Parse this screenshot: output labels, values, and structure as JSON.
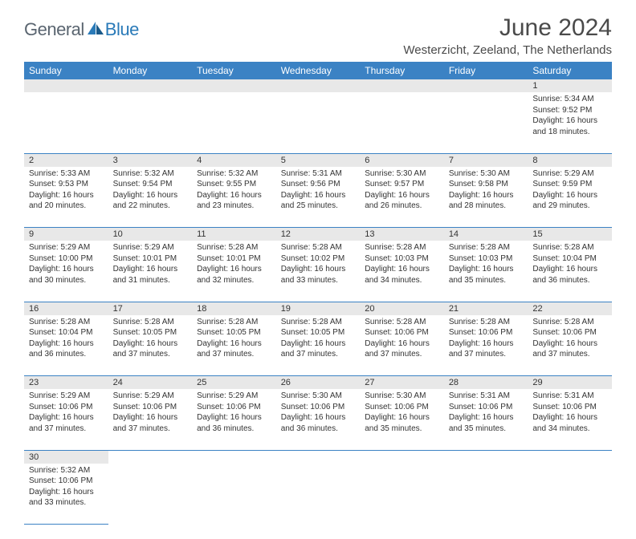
{
  "logo": {
    "text1": "General",
    "text2": "Blue"
  },
  "title": "June 2024",
  "location": "Westerzicht, Zeeland, The Netherlands",
  "colors": {
    "header_bg": "#3b82c4",
    "header_text": "#ffffff",
    "daynum_bg": "#e8e8e8",
    "border": "#3b82c4",
    "logo_gray": "#5a6570",
    "logo_blue": "#2a7ab8"
  },
  "weekdays": [
    "Sunday",
    "Monday",
    "Tuesday",
    "Wednesday",
    "Thursday",
    "Friday",
    "Saturday"
  ],
  "weeks": [
    [
      null,
      null,
      null,
      null,
      null,
      null,
      {
        "n": "1",
        "sr": "Sunrise: 5:34 AM",
        "ss": "Sunset: 9:52 PM",
        "dl": "Daylight: 16 hours and 18 minutes."
      }
    ],
    [
      {
        "n": "2",
        "sr": "Sunrise: 5:33 AM",
        "ss": "Sunset: 9:53 PM",
        "dl": "Daylight: 16 hours and 20 minutes."
      },
      {
        "n": "3",
        "sr": "Sunrise: 5:32 AM",
        "ss": "Sunset: 9:54 PM",
        "dl": "Daylight: 16 hours and 22 minutes."
      },
      {
        "n": "4",
        "sr": "Sunrise: 5:32 AM",
        "ss": "Sunset: 9:55 PM",
        "dl": "Daylight: 16 hours and 23 minutes."
      },
      {
        "n": "5",
        "sr": "Sunrise: 5:31 AM",
        "ss": "Sunset: 9:56 PM",
        "dl": "Daylight: 16 hours and 25 minutes."
      },
      {
        "n": "6",
        "sr": "Sunrise: 5:30 AM",
        "ss": "Sunset: 9:57 PM",
        "dl": "Daylight: 16 hours and 26 minutes."
      },
      {
        "n": "7",
        "sr": "Sunrise: 5:30 AM",
        "ss": "Sunset: 9:58 PM",
        "dl": "Daylight: 16 hours and 28 minutes."
      },
      {
        "n": "8",
        "sr": "Sunrise: 5:29 AM",
        "ss": "Sunset: 9:59 PM",
        "dl": "Daylight: 16 hours and 29 minutes."
      }
    ],
    [
      {
        "n": "9",
        "sr": "Sunrise: 5:29 AM",
        "ss": "Sunset: 10:00 PM",
        "dl": "Daylight: 16 hours and 30 minutes."
      },
      {
        "n": "10",
        "sr": "Sunrise: 5:29 AM",
        "ss": "Sunset: 10:01 PM",
        "dl": "Daylight: 16 hours and 31 minutes."
      },
      {
        "n": "11",
        "sr": "Sunrise: 5:28 AM",
        "ss": "Sunset: 10:01 PM",
        "dl": "Daylight: 16 hours and 32 minutes."
      },
      {
        "n": "12",
        "sr": "Sunrise: 5:28 AM",
        "ss": "Sunset: 10:02 PM",
        "dl": "Daylight: 16 hours and 33 minutes."
      },
      {
        "n": "13",
        "sr": "Sunrise: 5:28 AM",
        "ss": "Sunset: 10:03 PM",
        "dl": "Daylight: 16 hours and 34 minutes."
      },
      {
        "n": "14",
        "sr": "Sunrise: 5:28 AM",
        "ss": "Sunset: 10:03 PM",
        "dl": "Daylight: 16 hours and 35 minutes."
      },
      {
        "n": "15",
        "sr": "Sunrise: 5:28 AM",
        "ss": "Sunset: 10:04 PM",
        "dl": "Daylight: 16 hours and 36 minutes."
      }
    ],
    [
      {
        "n": "16",
        "sr": "Sunrise: 5:28 AM",
        "ss": "Sunset: 10:04 PM",
        "dl": "Daylight: 16 hours and 36 minutes."
      },
      {
        "n": "17",
        "sr": "Sunrise: 5:28 AM",
        "ss": "Sunset: 10:05 PM",
        "dl": "Daylight: 16 hours and 37 minutes."
      },
      {
        "n": "18",
        "sr": "Sunrise: 5:28 AM",
        "ss": "Sunset: 10:05 PM",
        "dl": "Daylight: 16 hours and 37 minutes."
      },
      {
        "n": "19",
        "sr": "Sunrise: 5:28 AM",
        "ss": "Sunset: 10:05 PM",
        "dl": "Daylight: 16 hours and 37 minutes."
      },
      {
        "n": "20",
        "sr": "Sunrise: 5:28 AM",
        "ss": "Sunset: 10:06 PM",
        "dl": "Daylight: 16 hours and 37 minutes."
      },
      {
        "n": "21",
        "sr": "Sunrise: 5:28 AM",
        "ss": "Sunset: 10:06 PM",
        "dl": "Daylight: 16 hours and 37 minutes."
      },
      {
        "n": "22",
        "sr": "Sunrise: 5:28 AM",
        "ss": "Sunset: 10:06 PM",
        "dl": "Daylight: 16 hours and 37 minutes."
      }
    ],
    [
      {
        "n": "23",
        "sr": "Sunrise: 5:29 AM",
        "ss": "Sunset: 10:06 PM",
        "dl": "Daylight: 16 hours and 37 minutes."
      },
      {
        "n": "24",
        "sr": "Sunrise: 5:29 AM",
        "ss": "Sunset: 10:06 PM",
        "dl": "Daylight: 16 hours and 37 minutes."
      },
      {
        "n": "25",
        "sr": "Sunrise: 5:29 AM",
        "ss": "Sunset: 10:06 PM",
        "dl": "Daylight: 16 hours and 36 minutes."
      },
      {
        "n": "26",
        "sr": "Sunrise: 5:30 AM",
        "ss": "Sunset: 10:06 PM",
        "dl": "Daylight: 16 hours and 36 minutes."
      },
      {
        "n": "27",
        "sr": "Sunrise: 5:30 AM",
        "ss": "Sunset: 10:06 PM",
        "dl": "Daylight: 16 hours and 35 minutes."
      },
      {
        "n": "28",
        "sr": "Sunrise: 5:31 AM",
        "ss": "Sunset: 10:06 PM",
        "dl": "Daylight: 16 hours and 35 minutes."
      },
      {
        "n": "29",
        "sr": "Sunrise: 5:31 AM",
        "ss": "Sunset: 10:06 PM",
        "dl": "Daylight: 16 hours and 34 minutes."
      }
    ],
    [
      {
        "n": "30",
        "sr": "Sunrise: 5:32 AM",
        "ss": "Sunset: 10:06 PM",
        "dl": "Daylight: 16 hours and 33 minutes."
      },
      null,
      null,
      null,
      null,
      null,
      null
    ]
  ]
}
